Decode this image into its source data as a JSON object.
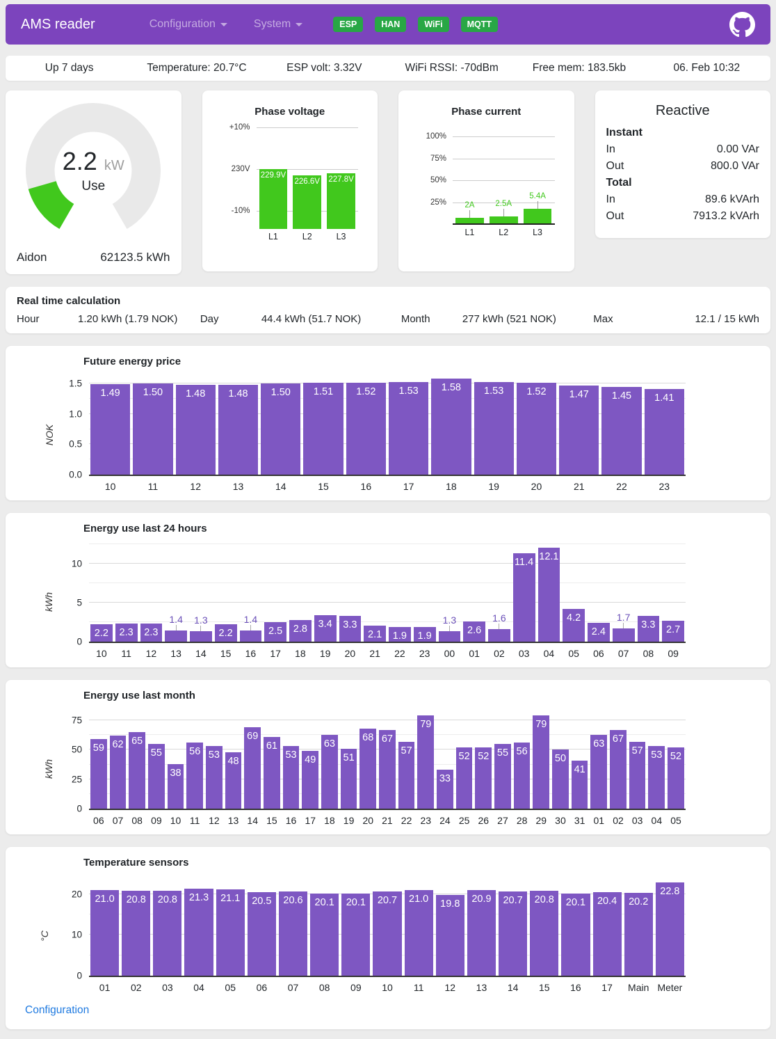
{
  "colors": {
    "bar_purple": "#7e57c2",
    "chart_green": "#41c81d",
    "header_purple": "#7c44bd",
    "badge_green": "#28a745",
    "link_blue": "#1f7ae0",
    "gauge_track": "#e9e9e9"
  },
  "header": {
    "brand": "AMS reader",
    "nav": [
      {
        "label": "Configuration"
      },
      {
        "label": "System"
      }
    ],
    "badges": [
      "ESP",
      "HAN",
      "WiFi",
      "MQTT"
    ]
  },
  "status_bar": {
    "items": [
      "Up 7 days",
      "Temperature: 20.7°C",
      "ESP volt: 3.32V",
      "WiFi RSSI: -70dBm",
      "Free mem: 183.5kb",
      "06. Feb 10:32"
    ]
  },
  "gauge_card": {
    "value": "2.2",
    "unit": "kW",
    "center_label": "Use",
    "value_num": 2.2,
    "max": 15,
    "meter": "Aidon",
    "total": "62123.5 kWh"
  },
  "reactive_card": {
    "title": "Reactive",
    "instant_label": "Instant",
    "instant_in_label": "In",
    "instant_in": "0.00 VAr",
    "instant_out_label": "Out",
    "instant_out": "800.0 VAr",
    "total_label": "Total",
    "total_in_label": "In",
    "total_in": "89.6 kVArh",
    "total_out_label": "Out",
    "total_out": "7913.2 kVArh"
  },
  "realtime": {
    "title": "Real time calculation",
    "items": [
      {
        "label": "Hour",
        "value": "1.20 kWh (1.79 NOK)"
      },
      {
        "label": "Day",
        "value": "44.4 kWh (51.7 NOK)"
      },
      {
        "label": "Month",
        "value": "277 kWh (521 NOK)"
      },
      {
        "label": "Max",
        "value": "12.1 / 15 kWh"
      }
    ]
  },
  "chart_data": [
    {
      "id": "phase_voltage",
      "type": "bar",
      "title": "Phase voltage",
      "categories": [
        "L1",
        "L2",
        "L3"
      ],
      "values": [
        229.9,
        226.6,
        227.8
      ],
      "unit": "V",
      "decimals": 1,
      "ylim": [
        197,
        253
      ],
      "yticks": [
        {
          "label": "+10%",
          "value": 253
        },
        {
          "label": "230V",
          "value": 230
        },
        {
          "label": "-10%",
          "value": 207
        }
      ]
    },
    {
      "id": "phase_current",
      "type": "bar",
      "title": "Phase current",
      "categories": [
        "L1",
        "L2",
        "L3"
      ],
      "values": [
        2,
        2.5,
        5.4
      ],
      "labels": [
        "2A",
        "2.5A",
        "5.4A"
      ],
      "unit": "A",
      "max_amps": 32,
      "ylim": [
        0,
        110
      ],
      "yticks": [
        {
          "label": "100%",
          "value": 100
        },
        {
          "label": "75%",
          "value": 75
        },
        {
          "label": "50%",
          "value": 50
        },
        {
          "label": "25%",
          "value": 25
        }
      ]
    },
    {
      "id": "price",
      "type": "bar",
      "title": "Future energy price",
      "ylabel": "NOK",
      "categories": [
        "10",
        "11",
        "12",
        "13",
        "14",
        "15",
        "16",
        "17",
        "18",
        "19",
        "20",
        "21",
        "22",
        "23"
      ],
      "values": [
        1.49,
        1.5,
        1.48,
        1.48,
        1.5,
        1.51,
        1.52,
        1.53,
        1.58,
        1.53,
        1.52,
        1.47,
        1.45,
        1.41
      ],
      "decimals": 2,
      "ylim": [
        0,
        1.63
      ],
      "yticks": [
        0,
        0.5,
        1.0,
        1.5
      ],
      "tick_labels": [
        "0.0",
        "0.5",
        "1.0",
        "1.5"
      ]
    },
    {
      "id": "last24",
      "type": "bar",
      "title": "Energy use last 24 hours",
      "ylabel": "kWh",
      "categories": [
        "10",
        "11",
        "12",
        "13",
        "14",
        "15",
        "16",
        "17",
        "18",
        "19",
        "20",
        "21",
        "22",
        "23",
        "00",
        "01",
        "02",
        "03",
        "04",
        "05",
        "06",
        "07",
        "08",
        "09"
      ],
      "values": [
        2.2,
        2.3,
        2.3,
        1.4,
        1.3,
        2.2,
        1.4,
        2.5,
        2.8,
        3.4,
        3.3,
        2.1,
        1.9,
        1.9,
        1.3,
        2.6,
        1.6,
        11.4,
        12.1,
        4.2,
        2.4,
        1.7,
        3.3,
        2.7
      ],
      "decimals": 1,
      "ylim": [
        0,
        12.7
      ],
      "yticks": [
        0,
        5,
        10
      ],
      "tick_labels": [
        "0",
        "5",
        "10"
      ]
    },
    {
      "id": "month",
      "type": "bar",
      "title": "Energy use last month",
      "ylabel": "kWh",
      "categories": [
        "06",
        "07",
        "08",
        "09",
        "10",
        "11",
        "12",
        "13",
        "14",
        "15",
        "16",
        "17",
        "18",
        "19",
        "20",
        "21",
        "22",
        "23",
        "24",
        "25",
        "26",
        "27",
        "28",
        "29",
        "30",
        "31",
        "01",
        "02",
        "03",
        "04",
        "05"
      ],
      "values": [
        59,
        62,
        65,
        55,
        38,
        56,
        53,
        48,
        69,
        61,
        53,
        49,
        63,
        51,
        68,
        67,
        57,
        79,
        33,
        52,
        52,
        55,
        56,
        79,
        50,
        41,
        63,
        67,
        57,
        53,
        52
      ],
      "decimals": 0,
      "ylim": [
        0,
        84
      ],
      "yticks": [
        0,
        25,
        50,
        75
      ],
      "tick_labels": [
        "0",
        "25",
        "50",
        "75"
      ]
    },
    {
      "id": "temp",
      "type": "bar",
      "title": "Temperature sensors",
      "ylabel": "°C",
      "categories": [
        "01",
        "02",
        "03",
        "04",
        "05",
        "06",
        "07",
        "08",
        "09",
        "10",
        "11",
        "12",
        "13",
        "14",
        "15",
        "16",
        "17",
        "Main",
        "Meter"
      ],
      "values": [
        21.0,
        20.8,
        20.8,
        21.3,
        21.1,
        20.5,
        20.6,
        20.1,
        20.1,
        20.7,
        21.0,
        19.8,
        20.9,
        20.7,
        20.8,
        20.1,
        20.4,
        20.2,
        22.8
      ],
      "decimals": 1,
      "ylim": [
        0,
        24.2
      ],
      "yticks": [
        0,
        10,
        20
      ],
      "tick_labels": [
        "0",
        "10",
        "20"
      ]
    }
  ],
  "footer": {
    "link": "Configuration"
  }
}
